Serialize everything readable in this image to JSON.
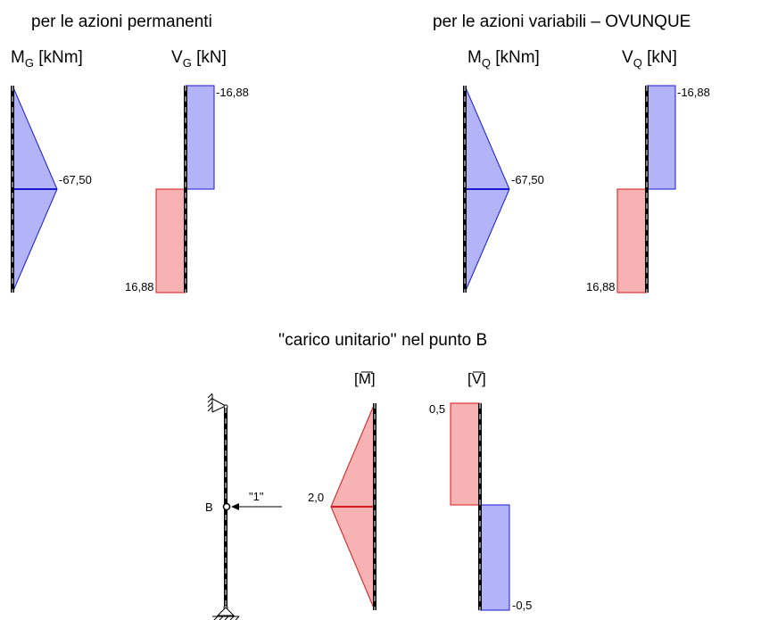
{
  "titles": {
    "permanent": "per le azioni permanenti",
    "variable": "per le azioni variabili – OVUNQUE",
    "unit_load": "''carico unitario'' nel punto B"
  },
  "left_group": {
    "moment_head": {
      "main": "M",
      "sub": "G",
      "unit": " [kNm]"
    },
    "shear_head": {
      "main": "V",
      "sub": "G",
      "unit": " [kN]"
    },
    "moment_value": "-67,50",
    "shear_top_value": "-16,88",
    "shear_bottom_value": "16,88"
  },
  "right_group": {
    "moment_head": {
      "main": "M",
      "sub": "Q",
      "unit": " [kNm]"
    },
    "shear_head": {
      "main": "V",
      "sub": "Q",
      "unit": " [kN]"
    },
    "moment_value": "-67,50",
    "shear_top_value": "-16,88",
    "shear_bottom_value": "16,88"
  },
  "unit_load_group": {
    "point_label": "B",
    "force_label": "\"1\"",
    "moment_head": "[M]",
    "shear_head": "[V]",
    "moment_value": "2,0",
    "shear_top_value": "0,5",
    "shear_bottom_value": "-0,5"
  },
  "colors": {
    "blue_fill": "#b3b3f7",
    "blue_line": "#1a1ad6",
    "red_fill": "#f7b3b3",
    "red_line": "#d61a1a",
    "beam": "#000000"
  }
}
